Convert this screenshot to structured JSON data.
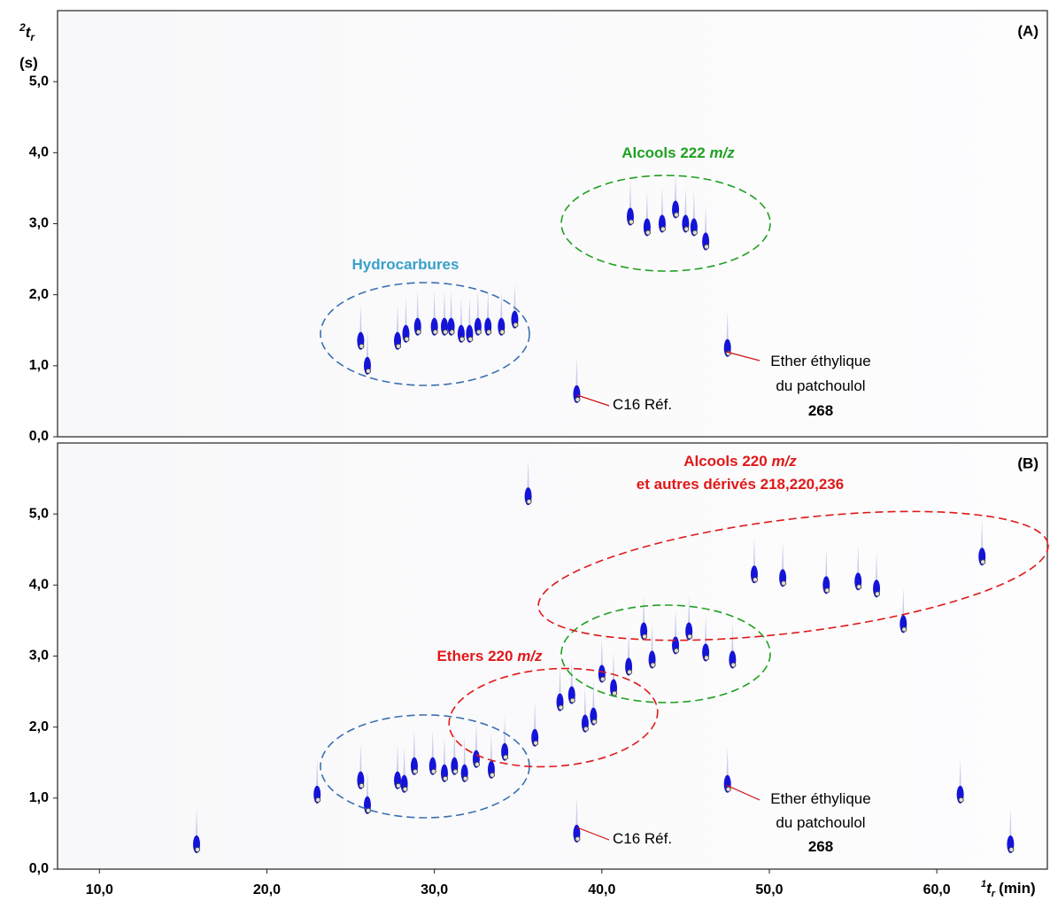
{
  "chart_data": [
    {
      "type": "scatter",
      "panel_label": "(A)",
      "color": "#1414d8",
      "y_label": {
        "sup": "2",
        "main": "t",
        "sub": "r",
        "unit": "(s)"
      },
      "xlim": [
        7.5,
        66.6
      ],
      "ylim": [
        0,
        6.0
      ],
      "yticks": [
        {
          "value": 0,
          "label": "0,0"
        },
        {
          "value": 1,
          "label": "1,0"
        },
        {
          "value": 2,
          "label": "2,0"
        },
        {
          "value": 3,
          "label": "3,0"
        },
        {
          "value": 4,
          "label": "4,0"
        },
        {
          "value": 5,
          "label": "5,0"
        }
      ],
      "x": [
        25.6,
        26.0,
        27.8,
        28.3,
        29.0,
        30.0,
        30.6,
        31.0,
        31.6,
        32.1,
        32.6,
        33.2,
        34.0,
        34.8,
        38.5,
        41.7,
        42.7,
        43.6,
        44.4,
        45.0,
        45.5,
        46.2,
        47.5
      ],
      "values": [
        1.3,
        0.95,
        1.3,
        1.4,
        1.5,
        1.5,
        1.5,
        1.5,
        1.4,
        1.4,
        1.5,
        1.5,
        1.5,
        1.6,
        0.55,
        3.05,
        2.9,
        2.95,
        3.15,
        2.95,
        2.9,
        2.7,
        1.2
      ],
      "annotations": {
        "hydrocarbons": "Hydrocarbures",
        "alcohols": "Alcools 222",
        "alcohols_unit": "m/z",
        "reference": "C16 Réf.",
        "ether_1": "Ether éthylique",
        "ether_2": "du patchoulol",
        "ether_mass": "268"
      }
    },
    {
      "type": "scatter",
      "panel_label": "(B)",
      "color": "#1414d8",
      "x_label": {
        "sup": "1",
        "main": "t",
        "sub": "r",
        "unit": "(min)"
      },
      "xlim": [
        7.5,
        66.6
      ],
      "ylim": [
        0,
        6.0
      ],
      "xticks": [
        {
          "value": 10,
          "label": "10,0"
        },
        {
          "value": 20,
          "label": "20,0"
        },
        {
          "value": 30,
          "label": "30,0"
        },
        {
          "value": 40,
          "label": "40,0"
        },
        {
          "value": 50,
          "label": "50,0"
        },
        {
          "value": 60,
          "label": "60,0"
        }
      ],
      "yticks": [
        {
          "value": 0,
          "label": "0,0"
        },
        {
          "value": 1,
          "label": "1,0"
        },
        {
          "value": 2,
          "label": "2,0"
        },
        {
          "value": 3,
          "label": "3,0"
        },
        {
          "value": 4,
          "label": "4,0"
        },
        {
          "value": 5,
          "label": "5,0"
        }
      ],
      "x": [
        15.8,
        23.0,
        25.6,
        26.0,
        27.8,
        28.2,
        28.8,
        29.9,
        30.6,
        31.2,
        31.8,
        32.5,
        33.4,
        34.2,
        35.6,
        36.0,
        37.5,
        38.2,
        38.5,
        39.0,
        39.5,
        40.0,
        40.7,
        41.6,
        42.5,
        43.0,
        44.4,
        45.2,
        46.2,
        47.5,
        47.8,
        49.1,
        50.8,
        53.4,
        55.3,
        56.4,
        58.0,
        61.4,
        62.7,
        64.4
      ],
      "values": [
        0.3,
        1.0,
        1.2,
        0.85,
        1.2,
        1.15,
        1.4,
        1.4,
        1.3,
        1.4,
        1.3,
        1.5,
        1.35,
        1.6,
        5.2,
        1.8,
        2.3,
        2.4,
        0.45,
        2.0,
        2.1,
        2.7,
        2.5,
        2.8,
        3.3,
        2.9,
        3.1,
        3.3,
        3.0,
        1.15,
        2.9,
        4.1,
        4.05,
        3.95,
        4.0,
        3.9,
        3.4,
        1.0,
        4.35,
        0.3
      ],
      "annotations": {
        "alcohols_1": "Alcools 220",
        "alcohols_unit": "m/z",
        "alcohols_2": "et autres dérivés 218,220,236",
        "ethers": "Ethers 220",
        "ethers_unit": "m/z",
        "reference": "C16 Réf.",
        "ether_1": "Ether éthylique",
        "ether_2": "du patchoulol",
        "ether_mass": "268"
      }
    }
  ]
}
